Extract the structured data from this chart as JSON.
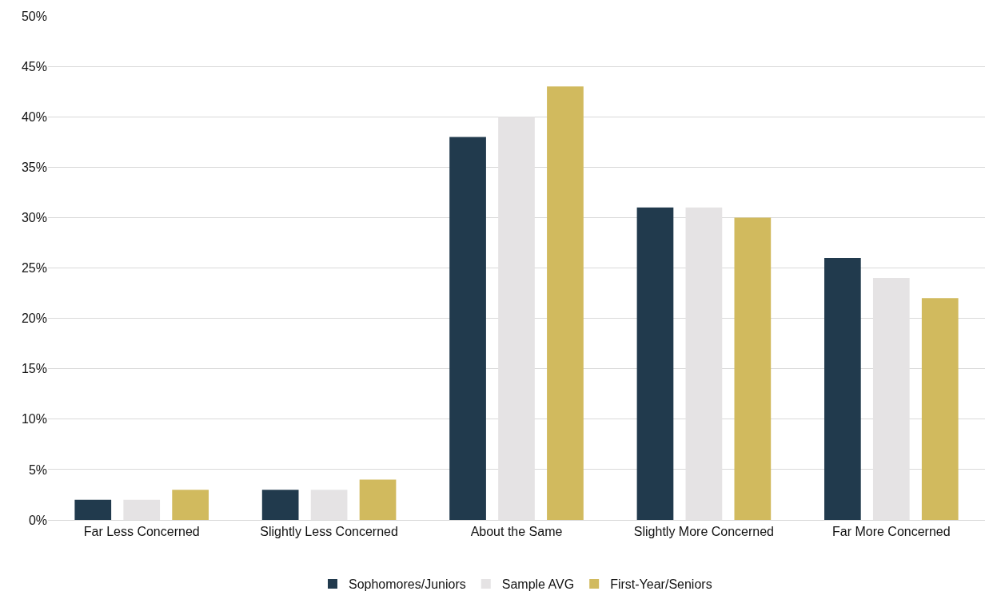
{
  "chart_data": {
    "type": "bar",
    "categories": [
      "Far Less Concerned",
      "Slightly Less Concerned",
      "About the Same",
      "Slightly More Concerned",
      "Far More Concerned"
    ],
    "series": [
      {
        "name": "Sophomores/Juniors",
        "color": "#213a4d",
        "values": [
          2,
          3,
          38,
          31,
          26
        ]
      },
      {
        "name": "Sample AVG",
        "color": "#e5e3e4",
        "values": [
          2,
          3,
          40,
          31,
          24
        ]
      },
      {
        "name": "First-Year/Seniors",
        "color": "#d1ba5e",
        "values": [
          3,
          4,
          43,
          30,
          22
        ]
      }
    ],
    "ylim": [
      0,
      50
    ],
    "yticks": [
      {
        "value": 0,
        "label": "0%"
      },
      {
        "value": 5,
        "label": "5%"
      },
      {
        "value": 10,
        "label": "10%"
      },
      {
        "value": 15,
        "label": "15%"
      },
      {
        "value": 20,
        "label": "20%"
      },
      {
        "value": 25,
        "label": "25%"
      },
      {
        "value": 30,
        "label": "30%"
      },
      {
        "value": 35,
        "label": "35%"
      },
      {
        "value": 40,
        "label": "40%"
      },
      {
        "value": 45,
        "label": "45%"
      },
      {
        "value": 50,
        "label": "50%"
      }
    ],
    "grid": "y",
    "legend": "bottom"
  }
}
